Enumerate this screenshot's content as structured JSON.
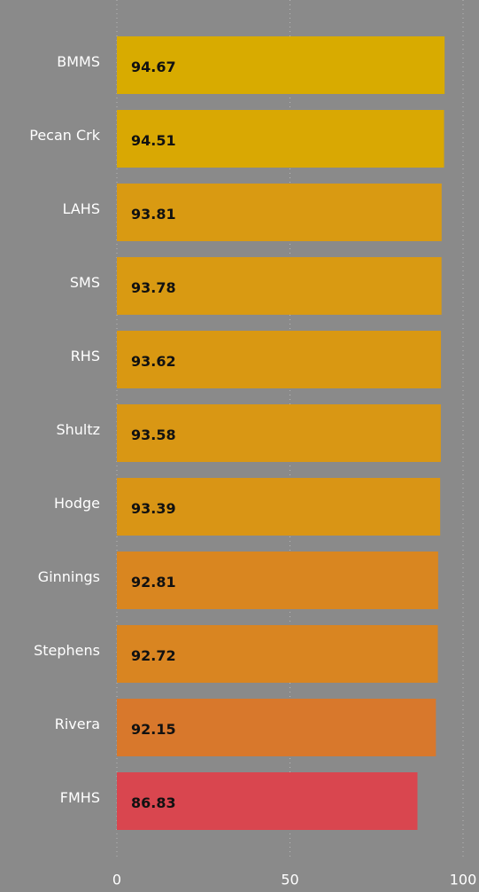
{
  "chart_data": {
    "type": "bar",
    "orientation": "horizontal",
    "categories": [
      "BMMS",
      "Pecan Crk",
      "LAHS",
      "SMS",
      "RHS",
      "Shultz",
      "Hodge",
      "Ginnings",
      "Stephens",
      "Rivera",
      "FMHS"
    ],
    "values": [
      94.67,
      94.51,
      93.81,
      93.78,
      93.62,
      93.58,
      93.39,
      92.81,
      92.72,
      92.15,
      86.83
    ],
    "colors": [
      "#d8ab00",
      "#d9a803",
      "#d99a12",
      "#d99a12",
      "#d99812",
      "#d99714",
      "#d99515",
      "#d98620",
      "#d98521",
      "#d8782c",
      "#d9464f"
    ],
    "xlim": [
      0,
      100
    ],
    "xticks": [
      0,
      50,
      100
    ],
    "grid": true
  }
}
